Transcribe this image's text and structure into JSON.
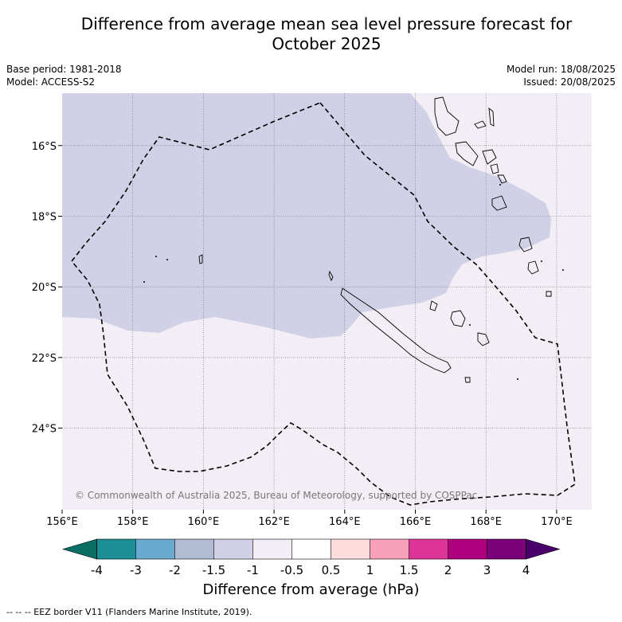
{
  "title_line1": "Difference from average mean sea level pressure forecast for",
  "title_line2": "October 2025",
  "base_period": "Base period: 1981-2018",
  "model": "Model: ACCESS-S2",
  "model_run": "Model run: 18/08/2025",
  "issued": "Issued: 20/08/2025",
  "copyright": "© Commonwealth of Australia 2025, Bureau of Meteorology, supported by COSPPac",
  "colorbar_title": "Difference from average (hPa)",
  "footnote": "--  --  -- EEZ border V11 (Flanders Marine Institute, 2019).",
  "lon_ticks": [
    "156°E",
    "158°E",
    "160°E",
    "162°E",
    "164°E",
    "166°E",
    "168°E",
    "170°E"
  ],
  "lat_ticks": [
    "16°S",
    "18°S",
    "20°S",
    "22°S",
    "24°S"
  ],
  "colorbar": {
    "ticks": [
      "-4",
      "-3",
      "-2",
      "-1.5",
      "-1",
      "-0.5",
      "0.5",
      "1",
      "1.5",
      "2",
      "3",
      "4"
    ],
    "colors": [
      "#1a8f96",
      "#6aaad1",
      "#b1bcd4",
      "#d0d1e6",
      "#f3eef6",
      "#ffffff",
      "#fddcdc",
      "#f9a1bb",
      "#dd3497",
      "#ae017e",
      "#7a0177"
    ],
    "extend_low_color": "#0b6e64",
    "extend_high_color": "#49006a"
  },
  "map_colors": {
    "negative_area": "#d0d1e6",
    "near_average": "#f3eef6"
  }
}
